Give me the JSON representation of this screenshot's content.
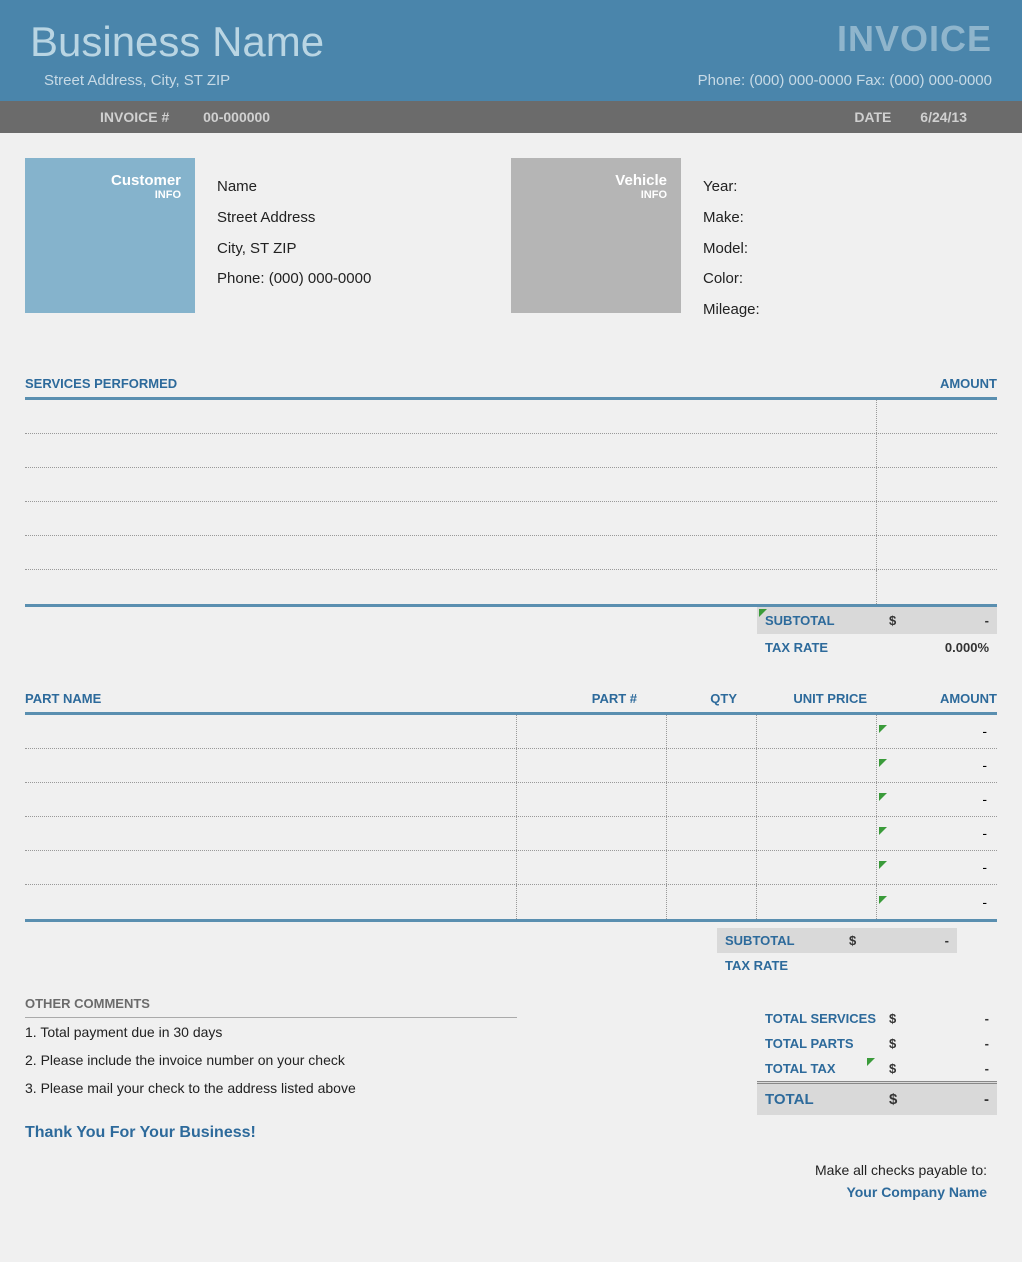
{
  "header": {
    "business_name": "Business Name",
    "invoice_label": "INVOICE",
    "address": "Street Address, City, ST ZIP",
    "phone_fax": "Phone: (000) 000-0000   Fax: (000) 000-0000"
  },
  "subheader": {
    "invoice_num_label": "INVOICE #",
    "invoice_num": "00-000000",
    "date_label": "DATE",
    "date": "6/24/13"
  },
  "customer": {
    "title": "Customer",
    "sub": "INFO",
    "name": "Name",
    "street": "Street Address",
    "city": "City, ST ZIP",
    "phone": "Phone: (000) 000-0000"
  },
  "vehicle": {
    "title": "Vehicle",
    "sub": "INFO",
    "year": "Year:",
    "make": "Make:",
    "model": "Model:",
    "color": "Color:",
    "mileage": "Mileage:"
  },
  "services": {
    "header_services": "SERVICES PERFORMED",
    "header_amount": "AMOUNT",
    "row_count": 6,
    "subtotal_label": "SUBTOTAL",
    "subtotal_currency": "$",
    "subtotal_value": "-",
    "tax_rate_label": "TAX RATE",
    "tax_rate_value": "0.000%"
  },
  "parts": {
    "header_name": "PART NAME",
    "header_partno": "PART  #",
    "header_qty": "QTY",
    "header_unit": "UNIT PRICE",
    "header_amount": "AMOUNT",
    "row_count": 6,
    "amount_placeholder": "-",
    "subtotal_label": "SUBTOTAL",
    "subtotal_currency": "$",
    "subtotal_value": "-",
    "tax_rate_label": "TAX RATE"
  },
  "comments": {
    "title": "OTHER COMMENTS",
    "line1": "1. Total payment due in 30 days",
    "line2": "2. Please include the invoice number on your check",
    "line3": "3. Please mail your check to the address listed above",
    "thanks": "Thank You For Your Business!"
  },
  "totals": {
    "services_label": "TOTAL SERVICES",
    "parts_label": "TOTAL PARTS",
    "tax_label": "TOTAL TAX",
    "grand_label": "TOTAL",
    "currency": "$",
    "dash": "-"
  },
  "footer": {
    "line1": "Make all checks payable to:",
    "line2": "Your Company Name"
  },
  "colors": {
    "header_bg": "#4a85ab",
    "subheader_bg": "#6b6b6b",
    "customer_panel": "#85b3cc",
    "vehicle_panel": "#b5b5b5",
    "accent": "#2d6a9b",
    "border": "#5a8fb0",
    "shaded": "#d9d9d9",
    "triangle": "#3a9b3a"
  }
}
